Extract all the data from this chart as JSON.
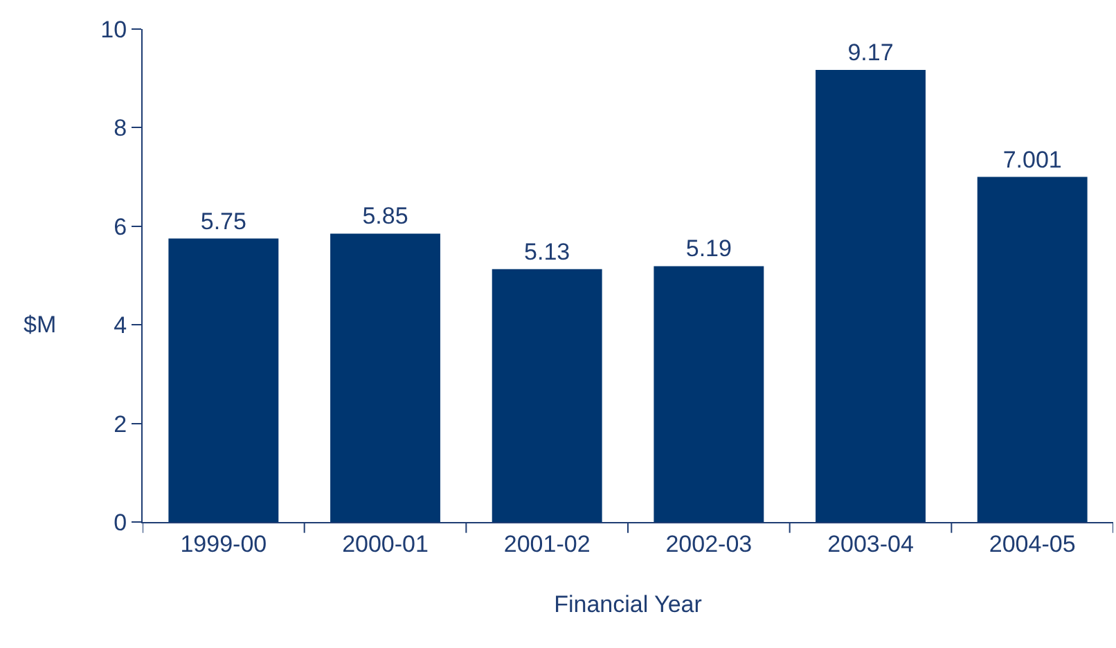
{
  "chart_data": {
    "type": "bar",
    "xlabel": "Financial Year",
    "ylabel": "$M",
    "categories": [
      "1999-00",
      "2000-01",
      "2001-02",
      "2002-03",
      "2003-04",
      "2004-05"
    ],
    "values": [
      5.75,
      5.85,
      5.13,
      5.19,
      9.17,
      7.001
    ],
    "color": "#003670",
    "ylim": [
      0,
      10
    ],
    "yticks": [
      0,
      2,
      4,
      6,
      8,
      10
    ],
    "grid": false,
    "data_labels": true
  }
}
